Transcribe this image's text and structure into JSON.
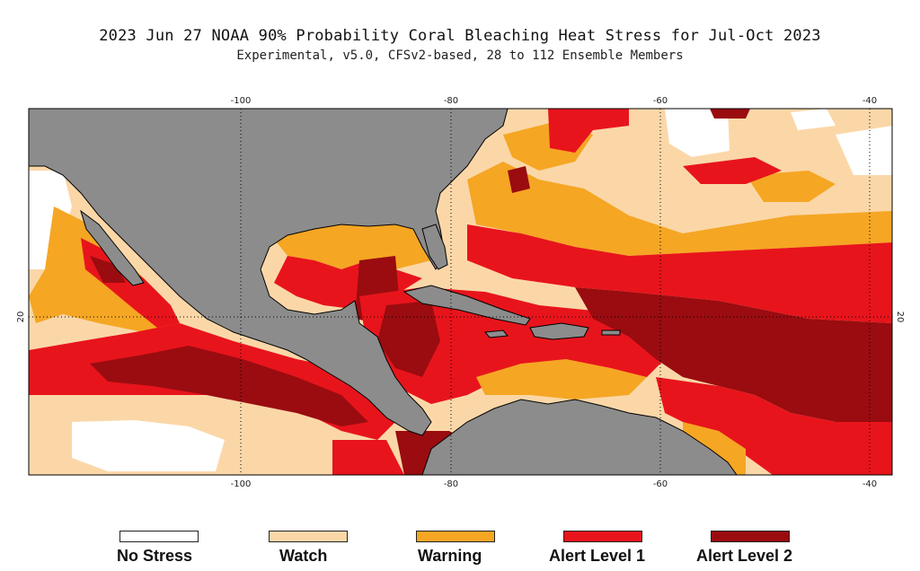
{
  "header": {
    "title": "2023 Jun 27 NOAA 90% Probability Coral Bleaching Heat Stress for Jul-Oct 2023",
    "subtitle": "Experimental, v5.0, CFSv2-based, 28 to 112 Ensemble Members"
  },
  "map": {
    "lon_ticks": [
      "-100",
      "-80",
      "-60",
      "-40"
    ],
    "lat_ticks": [
      "20"
    ],
    "colors": {
      "land": "#8c8c8c",
      "coast": "#000000",
      "no_stress": "#ffffff",
      "watch": "#fbd7a8",
      "warning": "#f5a623",
      "alert1": "#e8141c",
      "alert2": "#9a0c10"
    }
  },
  "legend": {
    "items": [
      {
        "label": "No Stress",
        "color": "#ffffff"
      },
      {
        "label": "Watch",
        "color": "#fbd7a8"
      },
      {
        "label": "Warning",
        "color": "#f5a623"
      },
      {
        "label": "Alert Level 1",
        "color": "#e8141c"
      },
      {
        "label": "Alert Level 2",
        "color": "#9a0c10"
      }
    ]
  }
}
